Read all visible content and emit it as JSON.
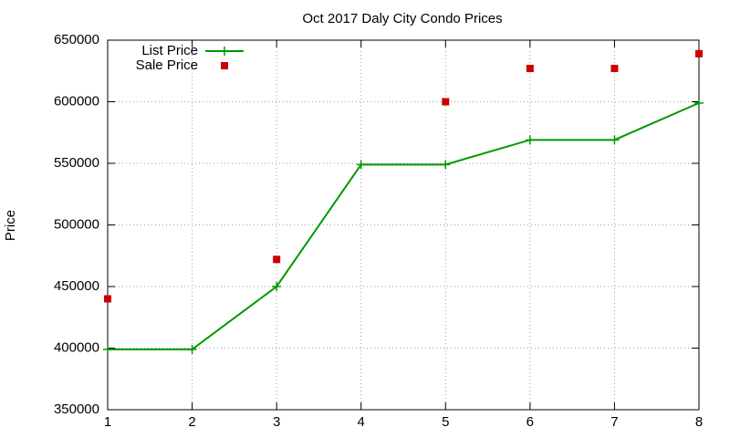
{
  "chart_data": {
    "type": "line",
    "title": "Oct 2017 Daly City Condo Prices",
    "y_label": "Price",
    "x": [
      1,
      2,
      3,
      4,
      5,
      6,
      7,
      8
    ],
    "series": [
      {
        "name": "List Price",
        "color": "#009900",
        "line": true,
        "marker": "plus",
        "values": [
          399000,
          399000,
          450000,
          549000,
          549000,
          569000,
          569000,
          599000
        ]
      },
      {
        "name": "Sale Price",
        "color": "#cc0000",
        "line": false,
        "marker": "square",
        "values": [
          440000,
          null,
          472000,
          null,
          600000,
          627000,
          627000,
          639000
        ],
        "x": [
          1,
          2,
          3,
          4,
          5,
          6,
          7,
          8
        ]
      }
    ],
    "xlim": [
      1,
      8
    ],
    "xticks": [
      1,
      2,
      3,
      4,
      5,
      6,
      7,
      8
    ],
    "ylim": [
      350000,
      650000
    ],
    "yticks": [
      350000,
      400000,
      450000,
      500000,
      550000,
      600000,
      650000
    ],
    "grid": true,
    "legend": "top-left"
  }
}
